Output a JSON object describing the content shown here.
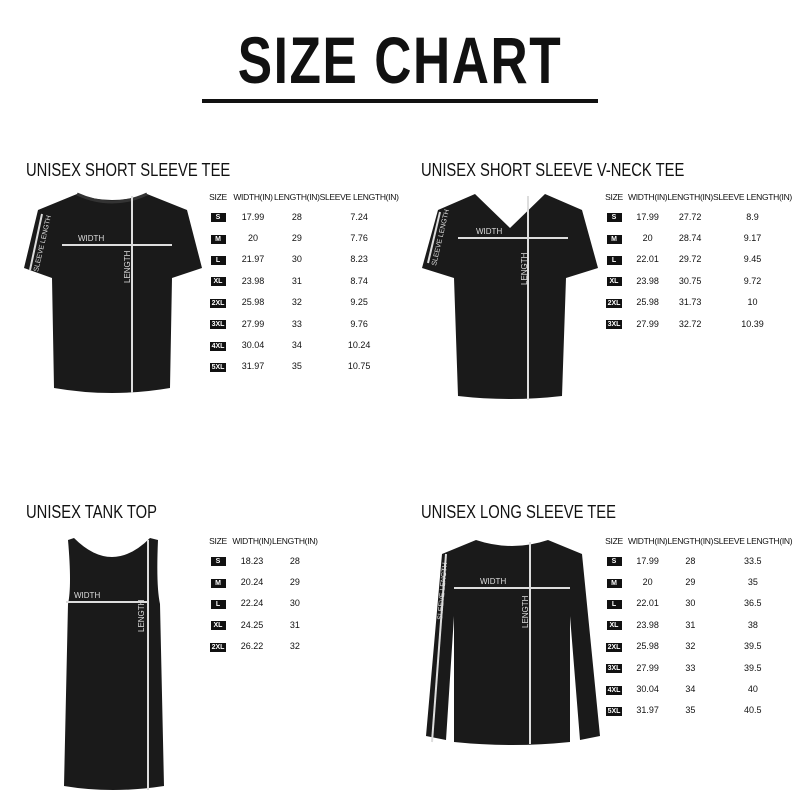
{
  "title": "SIZE CHART",
  "measure_labels": {
    "width": "WIDTH",
    "length": "LENGTH",
    "sleeve": "SLEEVE LENGTH"
  },
  "sections": [
    {
      "title": "UNISEX SHORT SLEEVE TEE",
      "columns": [
        "SIZE",
        "WIDTH(IN)",
        "LENGTH(IN)",
        "SLEEVE LENGTH(IN)"
      ],
      "rows": [
        [
          "S",
          "17.99",
          "28",
          "7.24"
        ],
        [
          "M",
          "20",
          "29",
          "7.76"
        ],
        [
          "L",
          "21.97",
          "30",
          "8.23"
        ],
        [
          "XL",
          "23.98",
          "31",
          "8.74"
        ],
        [
          "2XL",
          "25.98",
          "32",
          "9.25"
        ],
        [
          "3XL",
          "27.99",
          "33",
          "9.76"
        ],
        [
          "4XL",
          "30.04",
          "34",
          "10.24"
        ],
        [
          "5XL",
          "31.97",
          "35",
          "10.75"
        ]
      ]
    },
    {
      "title": "UNISEX SHORT SLEEVE V-NECK TEE",
      "columns": [
        "SIZE",
        "WIDTH(IN)",
        "LENGTH(IN)",
        "SLEEVE LENGTH(IN)"
      ],
      "rows": [
        [
          "S",
          "17.99",
          "27.72",
          "8.9"
        ],
        [
          "M",
          "20",
          "28.74",
          "9.17"
        ],
        [
          "L",
          "22.01",
          "29.72",
          "9.45"
        ],
        [
          "XL",
          "23.98",
          "30.75",
          "9.72"
        ],
        [
          "2XL",
          "25.98",
          "31.73",
          "10"
        ],
        [
          "3XL",
          "27.99",
          "32.72",
          "10.39"
        ]
      ]
    },
    {
      "title": "UNISEX TANK TOP",
      "columns": [
        "SIZE",
        "WIDTH(IN)",
        "LENGTH(IN)"
      ],
      "rows": [
        [
          "S",
          "18.23",
          "28"
        ],
        [
          "M",
          "20.24",
          "29"
        ],
        [
          "L",
          "22.24",
          "30"
        ],
        [
          "XL",
          "24.25",
          "31"
        ],
        [
          "2XL",
          "26.22",
          "32"
        ]
      ]
    },
    {
      "title": "UNISEX LONG SLEEVE TEE",
      "columns": [
        "SIZE",
        "WIDTH(IN)",
        "LENGTH(IN)",
        "SLEEVE LENGTH(IN)"
      ],
      "rows": [
        [
          "S",
          "17.99",
          "28",
          "33.5"
        ],
        [
          "M",
          "20",
          "29",
          "35"
        ],
        [
          "L",
          "22.01",
          "30",
          "36.5"
        ],
        [
          "XL",
          "23.98",
          "31",
          "38"
        ],
        [
          "2XL",
          "25.98",
          "32",
          "39.5"
        ],
        [
          "3XL",
          "27.99",
          "33",
          "39.5"
        ],
        [
          "4XL",
          "30.04",
          "34",
          "40"
        ],
        [
          "5XL",
          "31.97",
          "35",
          "40.5"
        ]
      ]
    }
  ]
}
